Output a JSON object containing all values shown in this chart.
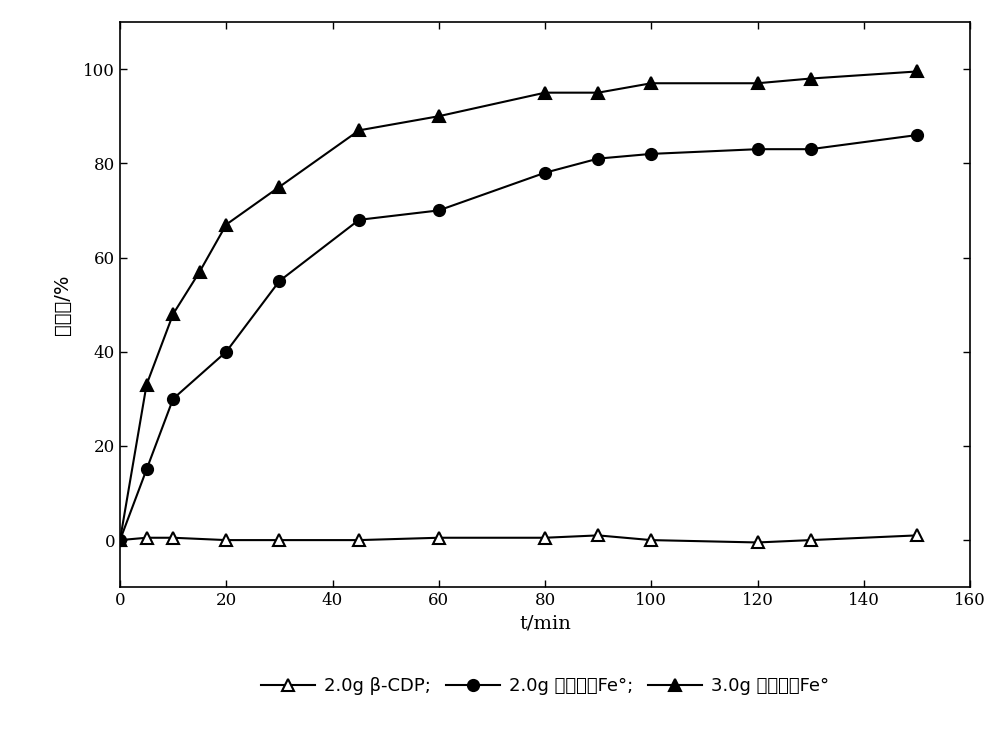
{
  "series1_label": "2.0g β-CDP;",
  "series2_label": "2.0g 包埋纳米Fe°;",
  "series3_label": "3.0g 包埋纳米Fe°",
  "series1_x": [
    0,
    5,
    10,
    20,
    30,
    45,
    60,
    80,
    90,
    100,
    120,
    130,
    150
  ],
  "series1_y": [
    0,
    0.5,
    0.5,
    0,
    0,
    0,
    0.5,
    0.5,
    1,
    0,
    -0.5,
    0,
    1
  ],
  "series2_x": [
    0,
    5,
    10,
    20,
    30,
    45,
    60,
    80,
    90,
    100,
    120,
    130,
    150
  ],
  "series2_y": [
    0,
    15,
    30,
    40,
    55,
    68,
    70,
    78,
    81,
    82,
    83,
    83,
    86
  ],
  "series3_x": [
    0,
    5,
    10,
    15,
    20,
    30,
    45,
    60,
    80,
    90,
    100,
    120,
    130,
    150
  ],
  "series3_y": [
    0,
    33,
    48,
    57,
    67,
    75,
    87,
    90,
    95,
    95,
    97,
    97,
    98,
    99.5
  ],
  "xlabel": "t/min",
  "ylabel": "去除率/%",
  "xlim": [
    0,
    160
  ],
  "ylim": [
    -10,
    110
  ],
  "xticks": [
    0,
    20,
    40,
    60,
    80,
    100,
    120,
    140,
    160
  ],
  "yticks": [
    0,
    20,
    40,
    60,
    80,
    100
  ],
  "line_color": "#000000",
  "background_color": "#ffffff",
  "axis_fontsize": 14,
  "tick_fontsize": 12,
  "legend_fontsize": 13
}
